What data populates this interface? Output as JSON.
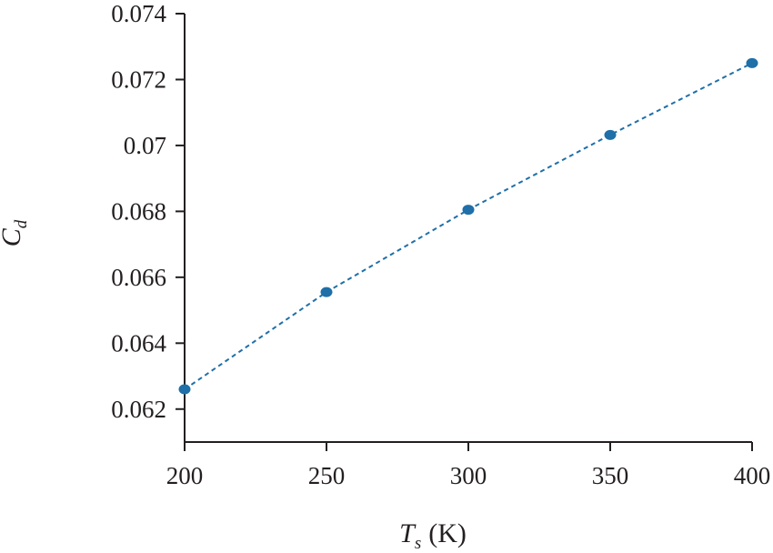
{
  "chart_data": {
    "type": "scatter",
    "title": "",
    "xlabel": {
      "main": "T",
      "sub": "s",
      "unit": "(K)"
    },
    "ylabel": {
      "main": "C",
      "sub": "d"
    },
    "xlim": [
      200,
      400
    ],
    "ylim": [
      0.061,
      0.074
    ],
    "xticks": [
      200,
      250,
      300,
      350,
      400
    ],
    "xtick_labels": [
      "200",
      "250",
      "300",
      "350",
      "400"
    ],
    "yticks": [
      0.062,
      0.064,
      0.066,
      0.068,
      0.07,
      0.072,
      0.074
    ],
    "ytick_labels": [
      "0.062",
      "0.064",
      "0.066",
      "0.068",
      "0.07",
      "0.072",
      "0.074"
    ],
    "grid": false,
    "legend": "none",
    "series": [
      {
        "x": [
          200,
          250,
          300,
          350,
          400
        ],
        "y": [
          0.0626,
          0.06555,
          0.06805,
          0.07032,
          0.0725
        ],
        "marker": "circle",
        "line": "dashed",
        "color": "#1f6fa8"
      }
    ]
  }
}
